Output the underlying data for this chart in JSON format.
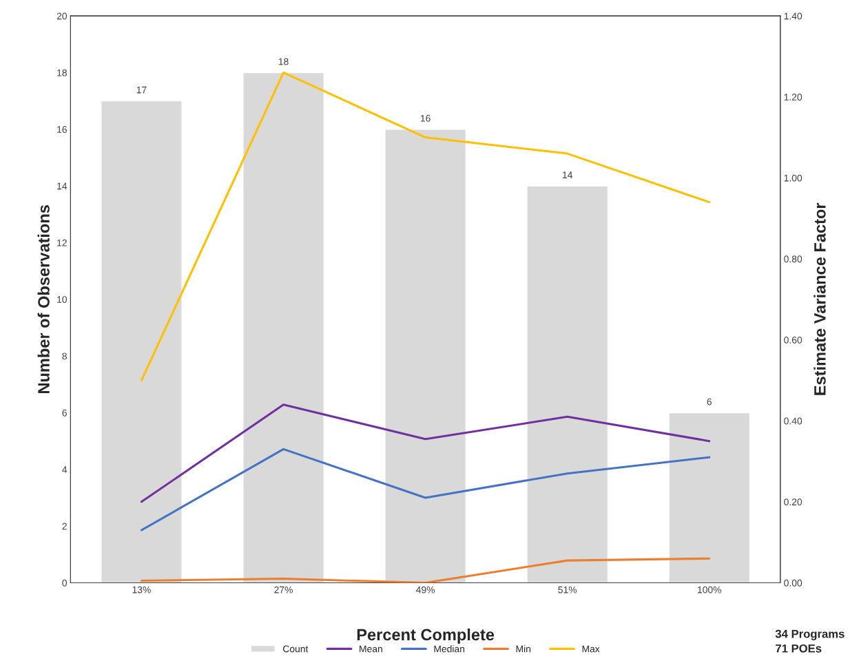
{
  "chart_data": {
    "type": "bar",
    "xlabel": "Percent Complete",
    "ylabel": "Number of Observations",
    "y2label": "Estimate Variance Factor",
    "categories": [
      "13%",
      "27%",
      "49%",
      "51%",
      "100%"
    ],
    "series": [
      {
        "name": "Count",
        "color": "#d9d9d9",
        "values": [
          17,
          18,
          16,
          14,
          6
        ],
        "value_labels": [
          "17",
          "18",
          "16",
          "14",
          "6"
        ]
      },
      {
        "name": "Mean",
        "type": "line",
        "axis": "y2",
        "color": "#7030a0",
        "values": [
          0.2,
          0.44,
          0.355,
          0.41,
          0.35
        ]
      },
      {
        "name": "Median",
        "type": "line",
        "axis": "y2",
        "color": "#4472c4",
        "values": [
          0.13,
          0.33,
          0.21,
          0.27,
          0.31
        ]
      },
      {
        "name": "Min",
        "type": "line",
        "axis": "y2",
        "color": "#ed7d31",
        "values": [
          0.005,
          0.01,
          0.0,
          0.055,
          0.06
        ]
      },
      {
        "name": "Max",
        "type": "line",
        "axis": "y2",
        "color": "#ffc000",
        "values": [
          0.5,
          1.26,
          1.1,
          1.06,
          0.94
        ]
      }
    ],
    "ylim": [
      0,
      20
    ],
    "yticks": [
      0,
      2,
      4,
      6,
      8,
      10,
      12,
      14,
      16,
      18,
      20
    ],
    "y2lim": [
      0,
      1.4
    ],
    "y2ticks": [
      {
        "value": 0,
        "label": "0.00"
      },
      {
        "value": 0.2,
        "label": "0.20"
      },
      {
        "value": 0.4,
        "label": "0.40"
      },
      {
        "value": 0.6,
        "label": "0.60"
      },
      {
        "value": 0.8,
        "label": "0.80"
      },
      {
        "value": 1.0,
        "label": "1.00"
      },
      {
        "value": 1.2,
        "label": "1.20"
      },
      {
        "value": 1.4,
        "label": "1.40"
      }
    ],
    "grid": false,
    "legend": "bottom",
    "marker": "none",
    "line_style": "solid",
    "annotations": [
      "34 Programs",
      "71 POEs"
    ]
  }
}
